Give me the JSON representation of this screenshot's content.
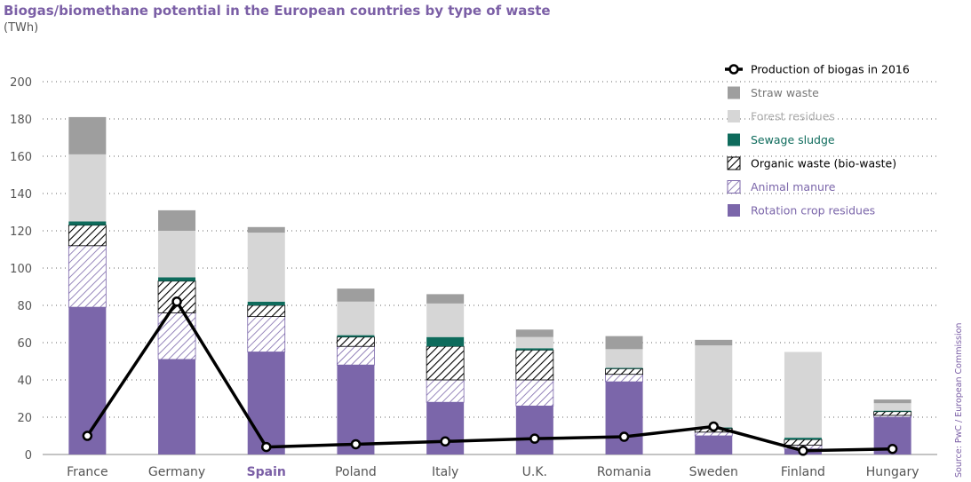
{
  "chart_data": {
    "type": "bar",
    "stacked": true,
    "title": "Biogas/biomethane potential in the European countries by type of waste",
    "subtitle": "(TWh)",
    "ylim": [
      0,
      200
    ],
    "yticks": [
      0,
      20,
      40,
      60,
      80,
      100,
      120,
      140,
      160,
      180,
      200
    ],
    "grid": true,
    "legend_position": "top-right",
    "categories": [
      "France",
      "Germany",
      "Spain",
      "Poland",
      "Italy",
      "U.K.",
      "Romania",
      "Sweden",
      "Finland",
      "Hungary"
    ],
    "highlighted_category": "Spain",
    "series": [
      {
        "name": "Rotation crop residues",
        "color": "#7b66aa",
        "pattern": "solid",
        "values": [
          79,
          51,
          55,
          48,
          28,
          26,
          39,
          10,
          3,
          20
        ]
      },
      {
        "name": "Animal manure",
        "color": "#7b66aa",
        "pattern": "diagonal-hatch",
        "values": [
          33,
          25,
          19,
          10,
          12,
          14,
          4,
          2,
          2,
          1
        ]
      },
      {
        "name": "Organic waste (bio-waste)",
        "color": "#000000",
        "pattern": "diagonal-hatch",
        "values": [
          11,
          17,
          6,
          5,
          18,
          16,
          3,
          2,
          3,
          2
        ]
      },
      {
        "name": "Sewage sludge",
        "color": "#0e6b5c",
        "pattern": "solid",
        "values": [
          2,
          2,
          2,
          1,
          5,
          1,
          0.5,
          0.5,
          1,
          0.5
        ]
      },
      {
        "name": "Forest residues",
        "color": "#d6d6d6",
        "pattern": "solid",
        "values": [
          36,
          25,
          37,
          18,
          18,
          6,
          10,
          44,
          46,
          4
        ]
      },
      {
        "name": "Straw waste",
        "color": "#9e9e9e",
        "pattern": "solid",
        "values": [
          20,
          11,
          3,
          7,
          5,
          4,
          7,
          3,
          0,
          2
        ]
      }
    ],
    "line_series": {
      "name": "Production of biogas in 2016",
      "color": "#000000",
      "values": [
        10,
        82,
        4,
        5.5,
        7,
        8.5,
        9.5,
        15,
        2,
        3
      ]
    },
    "legend_order": [
      "Production of biogas in 2016",
      "Straw waste",
      "Forest residues",
      "Sewage sludge",
      "Organic waste (bio-waste)",
      "Animal manure",
      "Rotation crop residues"
    ],
    "legend_text_colors": {
      "Production of biogas in 2016": "#000000",
      "Straw waste": "#777777",
      "Forest residues": "#aaaaaa",
      "Sewage sludge": "#0e6b5c",
      "Organic waste (bio-waste)": "#000000",
      "Animal manure": "#7b66aa",
      "Rotation crop residues": "#7b66aa"
    }
  },
  "source_note": "Source: PwC / European Commission"
}
